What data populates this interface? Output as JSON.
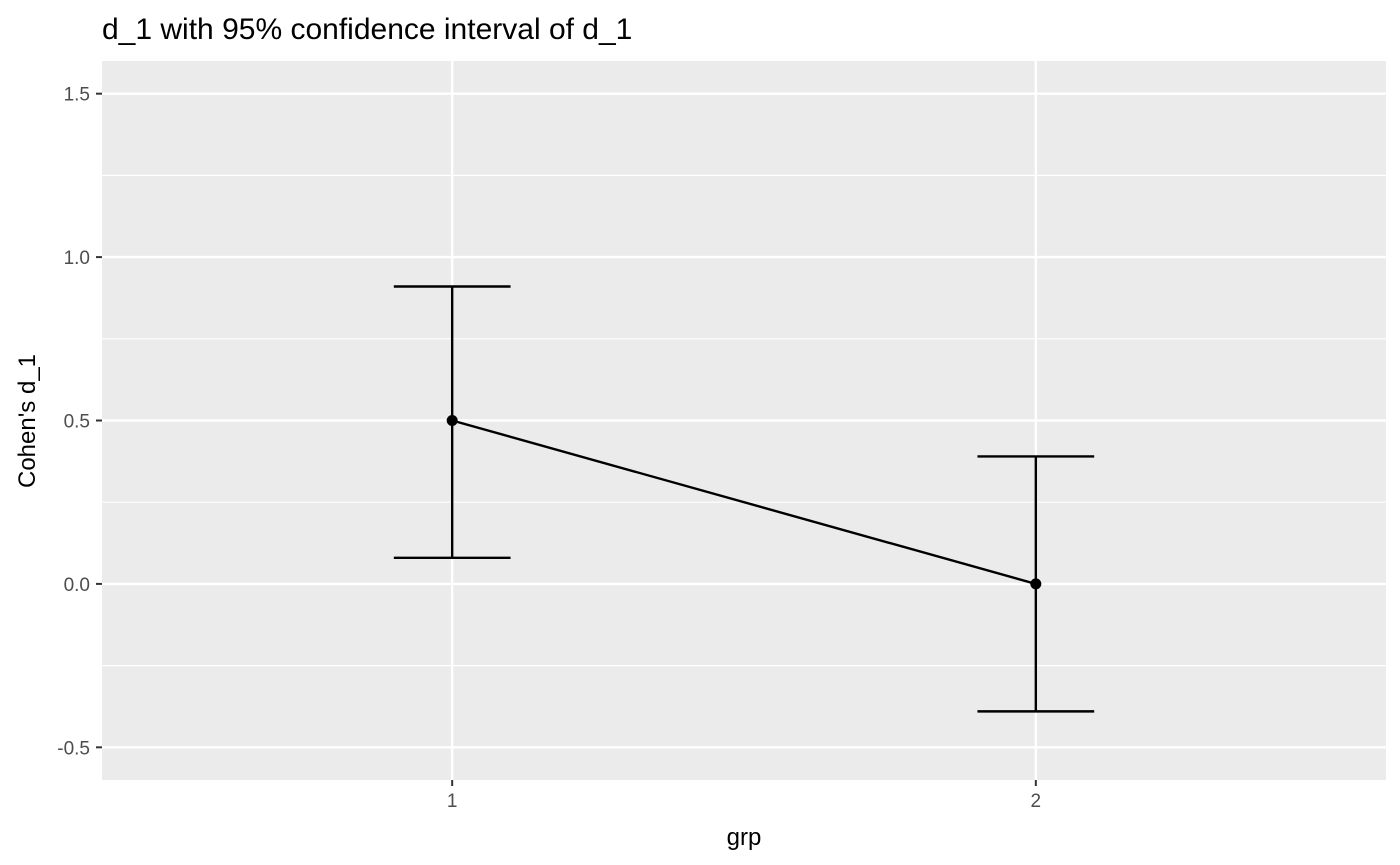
{
  "chart_data": {
    "type": "line",
    "title": "d_1 with 95% confidence interval of d_1",
    "xlabel": "grp",
    "ylabel": "Cohen's d_1",
    "categories": [
      "1",
      "2"
    ],
    "series": [
      {
        "name": "d_1",
        "values": [
          0.5,
          0.0
        ],
        "ci_lower": [
          0.08,
          -0.39
        ],
        "ci_upper": [
          0.91,
          0.39
        ]
      }
    ],
    "ylim": [
      -0.6,
      1.6
    ],
    "yticks": [
      -0.5,
      0.0,
      0.5,
      1.0,
      1.5
    ],
    "ytick_labels": [
      "-0.5",
      "0.0",
      "0.5",
      "1.0",
      "1.5"
    ],
    "grid": true,
    "colors": {
      "panel_background": "#ebebeb",
      "grid": "#ffffff",
      "series": "#000000",
      "tick_text": "#4d4d4d",
      "tick_mark": "#333333"
    }
  }
}
